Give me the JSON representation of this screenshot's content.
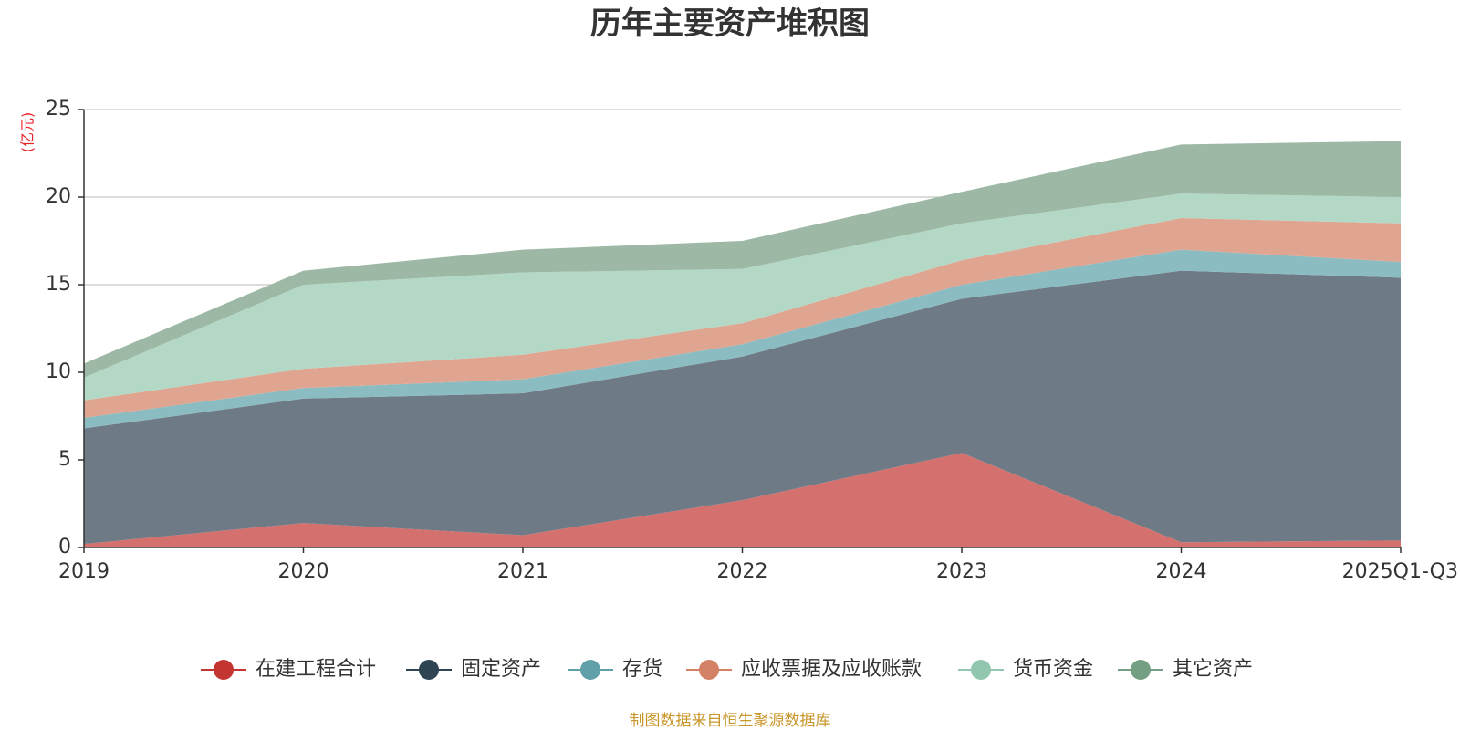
{
  "chart_data": {
    "type": "area",
    "stacked": true,
    "title": "历年主要资产堆积图",
    "unit_label": "(亿元)",
    "ylim": [
      0,
      25
    ],
    "yticks": [
      0,
      5,
      10,
      15,
      20,
      25
    ],
    "categories": [
      "2019",
      "2020",
      "2021",
      "2022",
      "2023",
      "2024",
      "2025Q1-Q3"
    ],
    "series": [
      {
        "name": "在建工程合计",
        "color": "#c23531",
        "fill": "#d4706e",
        "values": [
          0.2,
          1.4,
          0.7,
          2.7,
          5.4,
          0.3,
          0.4
        ]
      },
      {
        "name": "固定资产",
        "color": "#2f4554",
        "fill": "#6e7b86",
        "values": [
          6.6,
          7.1,
          8.1,
          8.2,
          8.8,
          15.5,
          15.0
        ]
      },
      {
        "name": "存货",
        "color": "#61a0a8",
        "fill": "#8bbcc2",
        "values": [
          0.6,
          0.6,
          0.8,
          0.7,
          0.8,
          1.2,
          0.9
        ]
      },
      {
        "name": "应收票据及应收账款",
        "color": "#d48265",
        "fill": "#e0a590",
        "values": [
          1.0,
          1.1,
          1.4,
          1.2,
          1.4,
          1.8,
          2.2
        ]
      },
      {
        "name": "货币资金",
        "color": "#91c7ae",
        "fill": "#b3d8c6",
        "values": [
          1.3,
          4.8,
          4.7,
          3.1,
          2.1,
          1.4,
          1.5
        ]
      },
      {
        "name": "其它资产",
        "color": "#749f83",
        "fill": "#9db9a5",
        "values": [
          0.8,
          0.8,
          1.3,
          1.6,
          1.8,
          2.8,
          3.2
        ]
      }
    ]
  },
  "footer": {
    "source": "制图数据来自恒生聚源数据库"
  }
}
